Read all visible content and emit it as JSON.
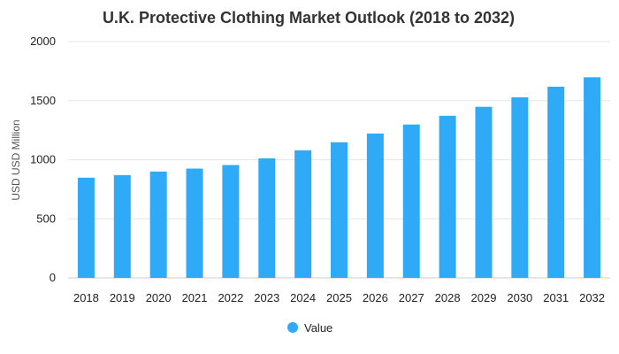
{
  "chart_data": {
    "type": "bar",
    "title": "U.K. Protective Clothing Market Outlook (2018 to 2032)",
    "xlabel": "",
    "ylabel": "USD USD Million",
    "ylim": [
      0,
      2000
    ],
    "yticks": [
      0,
      500,
      1000,
      1500,
      2000
    ],
    "grid": true,
    "legend_position": "bottom",
    "categories": [
      "2018",
      "2019",
      "2020",
      "2021",
      "2022",
      "2023",
      "2024",
      "2025",
      "2026",
      "2027",
      "2028",
      "2029",
      "2030",
      "2031",
      "2032"
    ],
    "series": [
      {
        "name": "Value",
        "color": "#2eaaf7",
        "values": [
          848,
          870,
          900,
          925,
          955,
          1012,
          1080,
          1148,
          1222,
          1298,
          1372,
          1448,
          1528,
          1618,
          1698
        ]
      }
    ]
  }
}
